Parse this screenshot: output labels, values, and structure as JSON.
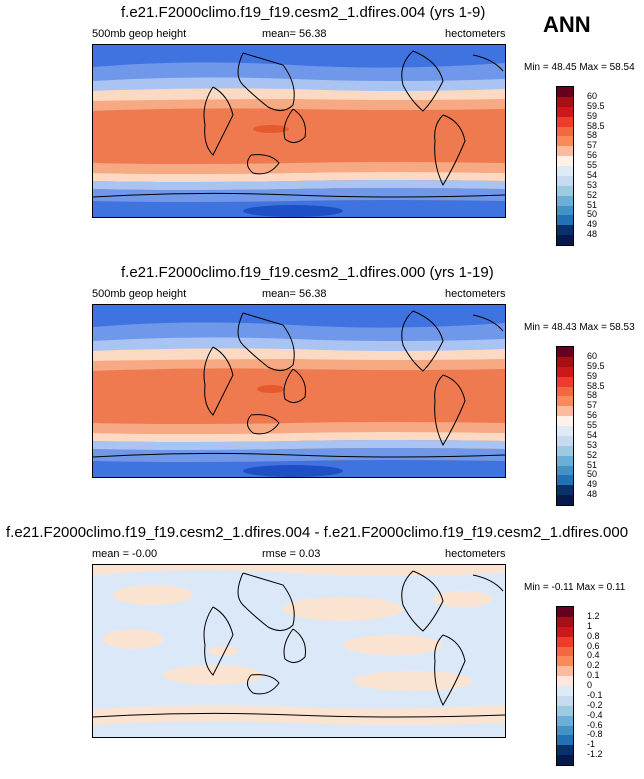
{
  "season": "ANN",
  "panels": [
    {
      "title": "f.e21.F2000climo.f19_f19.cesm2_1.dfires.004 (yrs 1-9)",
      "left_label": "500mb geop height",
      "mid_label": "mean=  56.38",
      "units": "hectometers",
      "minmax": "Min = 48.45 Max = 58.54",
      "colorbar": {
        "labels": [
          "60",
          "59.5",
          "59",
          "58.5",
          "58",
          "57",
          "56",
          "55",
          "54",
          "53",
          "52",
          "51",
          "50",
          "49",
          "48"
        ],
        "colors": [
          "#67001f",
          "#a50f15",
          "#cb181d",
          "#ef3b2c",
          "#f4683f",
          "#fb8a5a",
          "#fcbba1",
          "#fff1e8",
          "#deebf7",
          "#c6dbef",
          "#9ecae1",
          "#6baed6",
          "#4292c6",
          "#2171b5",
          "#08306b",
          "#061a4a"
        ]
      }
    },
    {
      "title": "f.e21.F2000climo.f19_f19.cesm2_1.dfires.000 (yrs 1-19)",
      "left_label": "500mb geop height",
      "mid_label": "mean=  56.38",
      "units": "hectometers",
      "minmax": "Min = 48.43 Max = 58.53",
      "colorbar": {
        "labels": [
          "60",
          "59.5",
          "59",
          "58.5",
          "58",
          "57",
          "56",
          "55",
          "54",
          "53",
          "52",
          "51",
          "50",
          "49",
          "48"
        ],
        "colors": [
          "#67001f",
          "#a50f15",
          "#cb181d",
          "#ef3b2c",
          "#f4683f",
          "#fb8a5a",
          "#fcbba1",
          "#fff1e8",
          "#deebf7",
          "#c6dbef",
          "#9ecae1",
          "#6baed6",
          "#4292c6",
          "#2171b5",
          "#08306b",
          "#061a4a"
        ]
      }
    },
    {
      "title": "f.e21.F2000climo.f19_f19.cesm2_1.dfires.004 - f.e21.F2000climo.f19_f19.cesm2_1.dfires.000",
      "left_label": "mean =  -0.00",
      "mid_label": "rmse =  0.03",
      "units": "hectometers",
      "minmax": "Min = -0.11 Max =  0.11",
      "colorbar": {
        "labels": [
          "1.2",
          "1",
          "0.8",
          "0.6",
          "0.4",
          "0.2",
          "0.1",
          "0",
          "-0.1",
          "-0.2",
          "-0.4",
          "-0.6",
          "-0.8",
          "-1",
          "-1.2"
        ],
        "colors": [
          "#67001f",
          "#a50f15",
          "#cb181d",
          "#ef3b2c",
          "#f4683f",
          "#fb8a5a",
          "#fcbba1",
          "#fde7dc",
          "#deebf7",
          "#c6dbef",
          "#9ecae1",
          "#6baed6",
          "#4292c6",
          "#2171b5",
          "#08306b",
          "#061a4a"
        ]
      }
    }
  ],
  "map_colors": {
    "polar_dark": "#1f4fc4",
    "polar_mid": "#3f73e0",
    "mid_blue": "#6f97ea",
    "light_blue": "#a9c4f2",
    "pale_blue": "#d6e4f8",
    "pale_orange": "#fbd9c3",
    "light_orange": "#f6a983",
    "orange": "#ef7a4f",
    "deep_orange": "#e85a2e",
    "diff_blue": "#dbe8f8",
    "diff_orange": "#fbe3d2"
  }
}
